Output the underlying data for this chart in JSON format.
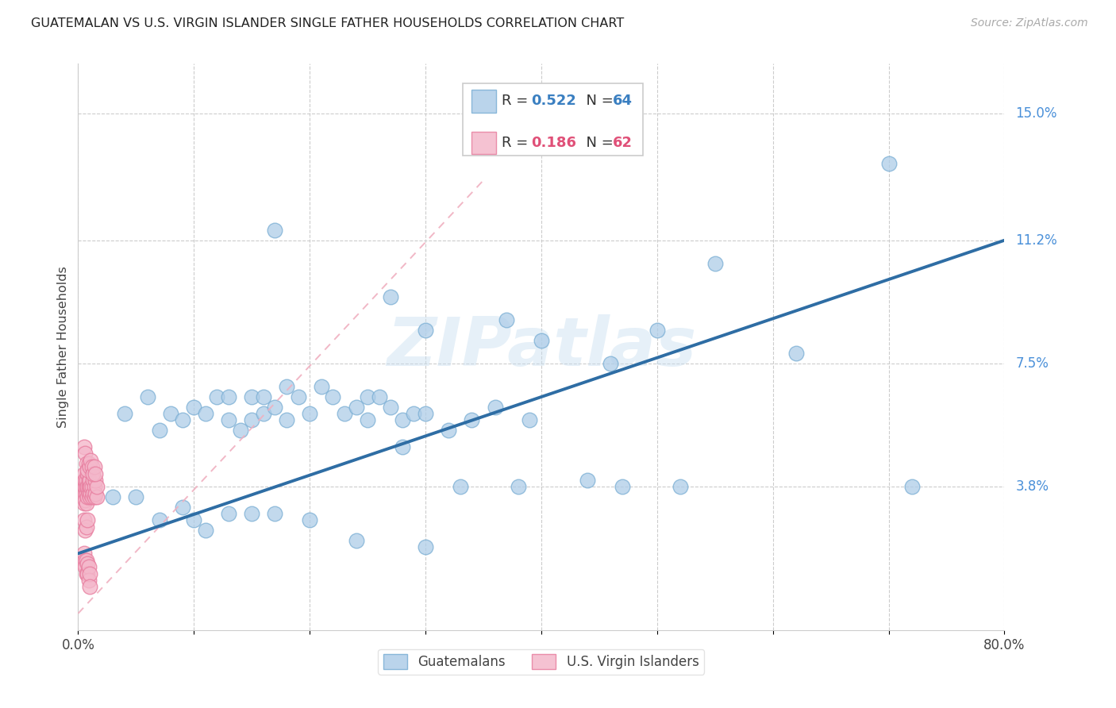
{
  "title": "GUATEMALAN VS U.S. VIRGIN ISLANDER SINGLE FATHER HOUSEHOLDS CORRELATION CHART",
  "source": "Source: ZipAtlas.com",
  "ylabel": "Single Father Households",
  "xlim": [
    0.0,
    0.8
  ],
  "ylim": [
    -0.005,
    0.165
  ],
  "xticks": [
    0.0,
    0.1,
    0.2,
    0.3,
    0.4,
    0.5,
    0.6,
    0.7,
    0.8
  ],
  "xticklabels": [
    "0.0%",
    "",
    "",
    "",
    "",
    "",
    "",
    "",
    "80.0%"
  ],
  "ytick_labels_right": [
    "15.0%",
    "11.2%",
    "7.5%",
    "3.8%"
  ],
  "ytick_vals_right": [
    0.15,
    0.112,
    0.075,
    0.038
  ],
  "guatemalan_R": 0.522,
  "guatemalan_N": 64,
  "virgin_R": 0.186,
  "virgin_N": 62,
  "guatemalan_color": "#aecde8",
  "guatemalan_edge": "#7bafd4",
  "virgin_color": "#f4b8cb",
  "virgin_edge": "#e87fa0",
  "trend_color_guatemalan": "#2e6da4",
  "trend_color_virgin": "#f0a0b8",
  "watermark": "ZIPatlas",
  "legend_guatemalans": "Guatemalans",
  "legend_virgin": "U.S. Virgin Islanders",
  "background_color": "#ffffff",
  "grid_color": "#cccccc",
  "text_color": "#444444",
  "right_label_color": "#4a90d9",
  "guat_trend_x0": 0.0,
  "guat_trend_y0": 0.018,
  "guat_trend_x1": 0.8,
  "guat_trend_y1": 0.112,
  "vi_trend_x0": 0.0,
  "vi_trend_y0": 0.0,
  "vi_trend_x1": 0.35,
  "vi_trend_y1": 0.13,
  "guatemalan_x": [
    0.17,
    0.27,
    0.3,
    0.37,
    0.4,
    0.46,
    0.5,
    0.55,
    0.62,
    0.7,
    0.04,
    0.06,
    0.07,
    0.08,
    0.09,
    0.1,
    0.11,
    0.12,
    0.13,
    0.13,
    0.14,
    0.15,
    0.15,
    0.16,
    0.16,
    0.17,
    0.18,
    0.18,
    0.19,
    0.2,
    0.21,
    0.22,
    0.23,
    0.24,
    0.25,
    0.25,
    0.26,
    0.27,
    0.28,
    0.29,
    0.3,
    0.32,
    0.34,
    0.36,
    0.39,
    0.28,
    0.33,
    0.38,
    0.44,
    0.52,
    0.03,
    0.05,
    0.07,
    0.09,
    0.1,
    0.11,
    0.13,
    0.15,
    0.17,
    0.2,
    0.24,
    0.3,
    0.47,
    0.72
  ],
  "guatemalan_y": [
    0.115,
    0.095,
    0.085,
    0.088,
    0.082,
    0.075,
    0.085,
    0.105,
    0.078,
    0.135,
    0.06,
    0.065,
    0.055,
    0.06,
    0.058,
    0.062,
    0.06,
    0.065,
    0.058,
    0.065,
    0.055,
    0.058,
    0.065,
    0.06,
    0.065,
    0.062,
    0.058,
    0.068,
    0.065,
    0.06,
    0.068,
    0.065,
    0.06,
    0.062,
    0.058,
    0.065,
    0.065,
    0.062,
    0.058,
    0.06,
    0.06,
    0.055,
    0.058,
    0.062,
    0.058,
    0.05,
    0.038,
    0.038,
    0.04,
    0.038,
    0.035,
    0.035,
    0.028,
    0.032,
    0.028,
    0.025,
    0.03,
    0.03,
    0.03,
    0.028,
    0.022,
    0.02,
    0.038,
    0.038
  ],
  "virgin_x": [
    0.005,
    0.005,
    0.005,
    0.005,
    0.005,
    0.006,
    0.006,
    0.006,
    0.006,
    0.007,
    0.007,
    0.007,
    0.007,
    0.008,
    0.008,
    0.008,
    0.009,
    0.009,
    0.009,
    0.01,
    0.01,
    0.01,
    0.011,
    0.011,
    0.012,
    0.012,
    0.012,
    0.013,
    0.013,
    0.014,
    0.014,
    0.015,
    0.015,
    0.016,
    0.016,
    0.005,
    0.006,
    0.007,
    0.008,
    0.009,
    0.01,
    0.011,
    0.012,
    0.013,
    0.014,
    0.015,
    0.005,
    0.006,
    0.007,
    0.008,
    0.005,
    0.005,
    0.006,
    0.006,
    0.007,
    0.007,
    0.008,
    0.008,
    0.009,
    0.009,
    0.01,
    0.01
  ],
  "virgin_y": [
    0.035,
    0.038,
    0.04,
    0.042,
    0.033,
    0.036,
    0.038,
    0.04,
    0.034,
    0.036,
    0.038,
    0.04,
    0.033,
    0.035,
    0.038,
    0.042,
    0.036,
    0.038,
    0.04,
    0.035,
    0.038,
    0.04,
    0.036,
    0.038,
    0.035,
    0.038,
    0.042,
    0.036,
    0.04,
    0.035,
    0.038,
    0.036,
    0.04,
    0.035,
    0.038,
    0.05,
    0.048,
    0.045,
    0.043,
    0.045,
    0.044,
    0.046,
    0.044,
    0.042,
    0.044,
    0.042,
    0.028,
    0.025,
    0.026,
    0.028,
    0.018,
    0.015,
    0.016,
    0.014,
    0.016,
    0.012,
    0.015,
    0.012,
    0.014,
    0.01,
    0.012,
    0.008
  ]
}
